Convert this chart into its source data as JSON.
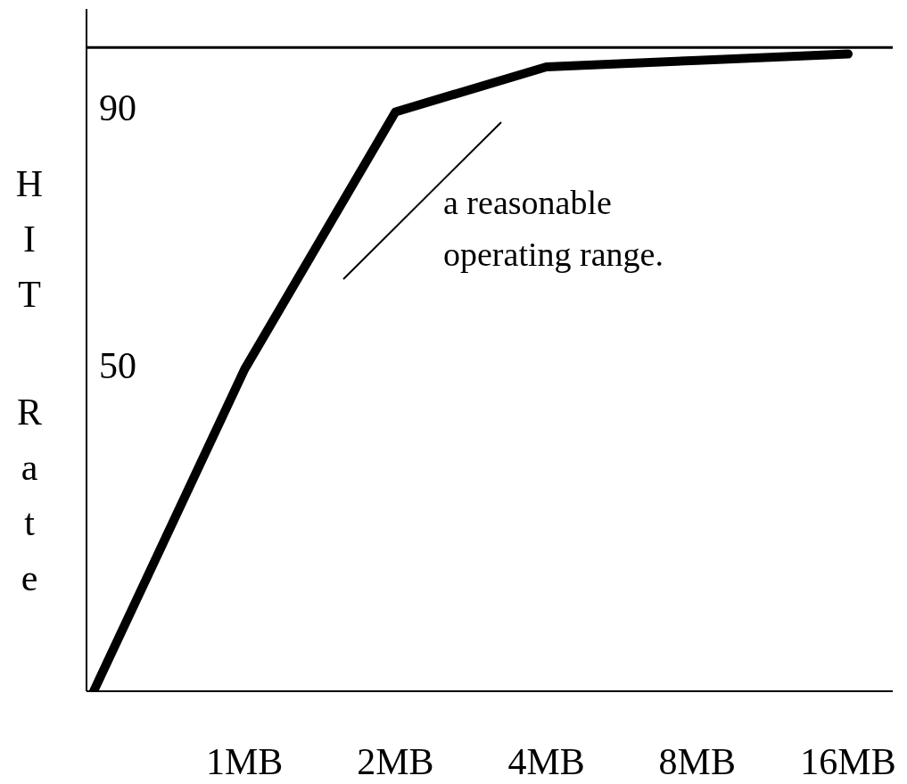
{
  "chart_data": {
    "type": "line",
    "ylabel": "HIT Rate",
    "categories": [
      null,
      "1MB",
      "2MB",
      "4MB",
      "8MB",
      "16MB"
    ],
    "series": [
      {
        "color": "#000000",
        "values": [
          0,
          50,
          90,
          97,
          98,
          99
        ]
      }
    ],
    "ylim": [
      0,
      106
    ],
    "yticks": [
      50,
      90
    ],
    "ref_lines": [
      {
        "axis": "y",
        "value": 100,
        "color": "#000000"
      }
    ],
    "annotations": [
      "a reasonable operating range."
    ],
    "grid": false,
    "legend": false,
    "marker": "none",
    "line_style": "solid"
  }
}
